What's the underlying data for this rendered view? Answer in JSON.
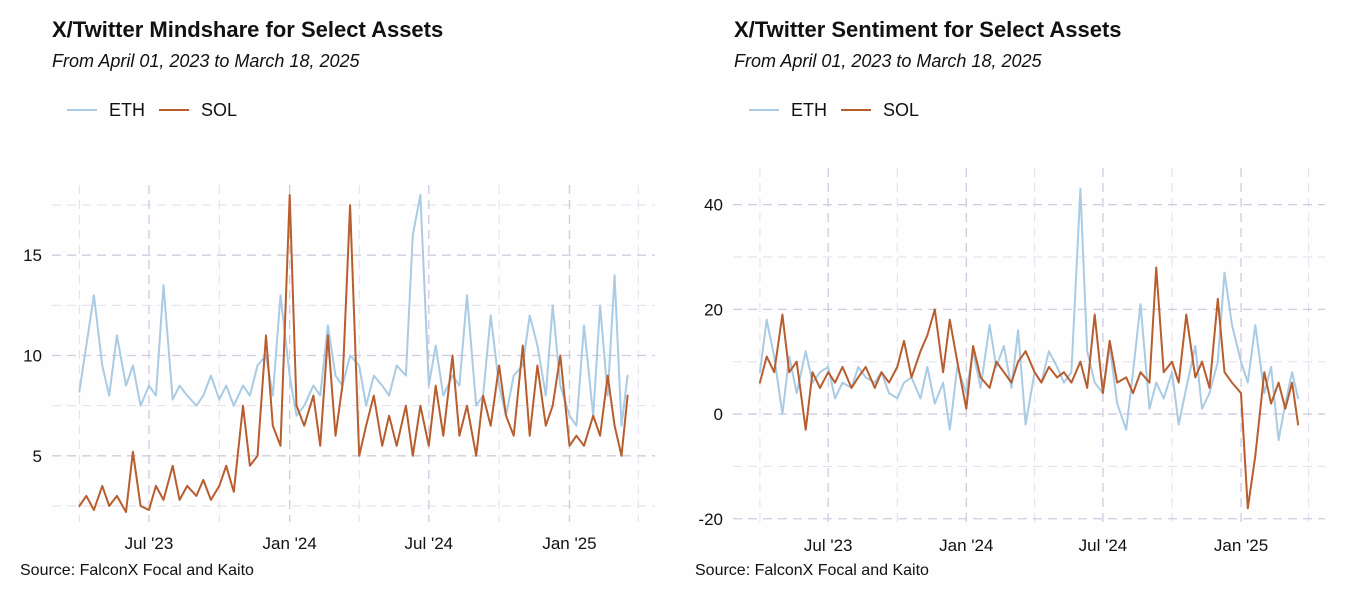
{
  "source_note": "Source: FalconX Focal and Kaito",
  "colors": {
    "eth": "#a9cbe3",
    "sol": "#b75d2e",
    "grid": "#cfcbe0"
  },
  "chart_data": [
    {
      "type": "line",
      "title": "X/Twitter Mindshare for Select Assets",
      "subtitle": "From April 01, 2023 to March 18, 2025",
      "xlabel": "",
      "ylabel": "",
      "x_range": [
        "2023-04-01",
        "2025-03-18"
      ],
      "ylim": [
        1.7,
        18.5
      ],
      "y_ticks": [
        5,
        10,
        15
      ],
      "y_tick_labels": [
        "5",
        "10",
        "15"
      ],
      "x_ticks": [
        "2023-07-01",
        "2024-01-01",
        "2024-07-01",
        "2025-01-01"
      ],
      "x_tick_labels": [
        "Jul '23",
        "Jan '24",
        "Jul '24",
        "Jan '25"
      ],
      "legend": [
        "ETH",
        "SOL"
      ],
      "legend_position": "top-left",
      "series": [
        {
          "name": "ETH",
          "color": "#a9cbe3",
          "x": [
            "2023-04-01",
            "2023-04-10",
            "2023-04-20",
            "2023-05-01",
            "2023-05-10",
            "2023-05-20",
            "2023-06-01",
            "2023-06-10",
            "2023-06-20",
            "2023-07-01",
            "2023-07-10",
            "2023-07-20",
            "2023-08-01",
            "2023-08-10",
            "2023-08-20",
            "2023-09-01",
            "2023-09-10",
            "2023-09-20",
            "2023-10-01",
            "2023-10-10",
            "2023-10-20",
            "2023-11-01",
            "2023-11-10",
            "2023-11-20",
            "2023-12-01",
            "2023-12-10",
            "2023-12-20",
            "2024-01-01",
            "2024-01-10",
            "2024-01-20",
            "2024-02-01",
            "2024-02-10",
            "2024-02-20",
            "2024-03-01",
            "2024-03-10",
            "2024-03-20",
            "2024-04-01",
            "2024-04-10",
            "2024-04-20",
            "2024-05-01",
            "2024-05-10",
            "2024-05-20",
            "2024-06-01",
            "2024-06-10",
            "2024-06-20",
            "2024-07-01",
            "2024-07-10",
            "2024-07-20",
            "2024-08-01",
            "2024-08-10",
            "2024-08-20",
            "2024-09-01",
            "2024-09-10",
            "2024-09-20",
            "2024-10-01",
            "2024-10-10",
            "2024-10-20",
            "2024-11-01",
            "2024-11-10",
            "2024-11-20",
            "2024-12-01",
            "2024-12-10",
            "2024-12-20",
            "2025-01-01",
            "2025-01-10",
            "2025-01-20",
            "2025-02-01",
            "2025-02-10",
            "2025-02-20",
            "2025-03-01",
            "2025-03-10",
            "2025-03-18"
          ],
          "values": [
            8.2,
            10.5,
            13.0,
            9.5,
            8.0,
            11.0,
            8.5,
            9.5,
            7.5,
            8.5,
            8.0,
            13.5,
            7.8,
            8.5,
            8.0,
            7.5,
            8.0,
            9.0,
            7.8,
            8.5,
            7.5,
            8.5,
            8.0,
            9.5,
            10.0,
            8.0,
            13.0,
            9.0,
            7.0,
            7.5,
            8.5,
            8.0,
            11.5,
            9.0,
            8.5,
            10.0,
            9.5,
            7.5,
            9.0,
            8.5,
            8.0,
            9.5,
            9.0,
            16.0,
            18.0,
            8.5,
            10.5,
            8.0,
            9.0,
            8.5,
            13.0,
            7.5,
            8.0,
            12.0,
            8.5,
            7.0,
            9.0,
            9.5,
            12.0,
            10.5,
            8.0,
            12.5,
            8.5,
            7.0,
            6.5,
            11.5,
            7.0,
            12.5,
            8.0,
            14.0,
            6.5,
            9.0
          ]
        },
        {
          "name": "SOL",
          "color": "#b75d2e",
          "x": [
            "2023-04-01",
            "2023-04-10",
            "2023-04-20",
            "2023-05-01",
            "2023-05-10",
            "2023-05-20",
            "2023-06-01",
            "2023-06-10",
            "2023-06-20",
            "2023-07-01",
            "2023-07-10",
            "2023-07-20",
            "2023-08-01",
            "2023-08-10",
            "2023-08-20",
            "2023-09-01",
            "2023-09-10",
            "2023-09-20",
            "2023-10-01",
            "2023-10-10",
            "2023-10-20",
            "2023-11-01",
            "2023-11-10",
            "2023-11-20",
            "2023-12-01",
            "2023-12-10",
            "2023-12-20",
            "2024-01-01",
            "2024-01-10",
            "2024-01-20",
            "2024-02-01",
            "2024-02-10",
            "2024-02-20",
            "2024-03-01",
            "2024-03-10",
            "2024-03-20",
            "2024-04-01",
            "2024-04-10",
            "2024-04-20",
            "2024-05-01",
            "2024-05-10",
            "2024-05-20",
            "2024-06-01",
            "2024-06-10",
            "2024-06-20",
            "2024-07-01",
            "2024-07-10",
            "2024-07-20",
            "2024-08-01",
            "2024-08-10",
            "2024-08-20",
            "2024-09-01",
            "2024-09-10",
            "2024-09-20",
            "2024-10-01",
            "2024-10-10",
            "2024-10-20",
            "2024-11-01",
            "2024-11-10",
            "2024-11-20",
            "2024-12-01",
            "2024-12-10",
            "2024-12-20",
            "2025-01-01",
            "2025-01-10",
            "2025-01-20",
            "2025-02-01",
            "2025-02-10",
            "2025-02-20",
            "2025-03-01",
            "2025-03-10",
            "2025-03-18"
          ],
          "values": [
            2.5,
            3.0,
            2.3,
            3.5,
            2.5,
            3.0,
            2.2,
            5.2,
            2.5,
            2.3,
            3.5,
            2.8,
            4.5,
            2.8,
            3.5,
            3.0,
            3.8,
            2.8,
            3.5,
            4.5,
            3.2,
            7.5,
            4.5,
            5.0,
            11.0,
            6.5,
            5.5,
            18.0,
            7.5,
            6.5,
            8.0,
            5.5,
            11.0,
            6.0,
            8.5,
            17.5,
            5.0,
            6.5,
            8.0,
            5.5,
            7.0,
            5.5,
            7.5,
            5.0,
            7.5,
            5.5,
            8.5,
            6.0,
            10.0,
            6.0,
            7.5,
            5.0,
            8.0,
            6.5,
            9.5,
            7.0,
            6.0,
            10.5,
            6.0,
            9.5,
            6.5,
            7.5,
            10.0,
            5.5,
            6.0,
            5.5,
            7.0,
            6.0,
            9.0,
            6.5,
            5.0,
            8.0
          ]
        }
      ]
    },
    {
      "type": "line",
      "title": "X/Twitter Sentiment for Select Assets",
      "subtitle": "From April 01, 2023 to March 18, 2025",
      "xlabel": "",
      "ylabel": "",
      "x_range": [
        "2023-04-01",
        "2025-03-18"
      ],
      "ylim": [
        -21,
        47
      ],
      "y_ticks": [
        -20,
        0,
        20,
        40
      ],
      "y_tick_labels": [
        "-20",
        "0",
        "20",
        "40"
      ],
      "x_ticks": [
        "2023-07-01",
        "2024-01-01",
        "2024-07-01",
        "2025-01-01"
      ],
      "x_tick_labels": [
        "Jul '23",
        "Jan '24",
        "Jul '24",
        "Jan '25"
      ],
      "legend": [
        "ETH",
        "SOL"
      ],
      "legend_position": "top-left",
      "series": [
        {
          "name": "ETH",
          "color": "#a9cbe3",
          "x": [
            "2023-04-01",
            "2023-04-10",
            "2023-04-20",
            "2023-05-01",
            "2023-05-10",
            "2023-05-20",
            "2023-06-01",
            "2023-06-10",
            "2023-06-20",
            "2023-07-01",
            "2023-07-10",
            "2023-07-20",
            "2023-08-01",
            "2023-08-10",
            "2023-08-20",
            "2023-09-01",
            "2023-09-10",
            "2023-09-20",
            "2023-10-01",
            "2023-10-10",
            "2023-10-20",
            "2023-11-01",
            "2023-11-10",
            "2023-11-20",
            "2023-12-01",
            "2023-12-10",
            "2023-12-20",
            "2024-01-01",
            "2024-01-10",
            "2024-01-20",
            "2024-02-01",
            "2024-02-10",
            "2024-02-20",
            "2024-03-01",
            "2024-03-10",
            "2024-03-20",
            "2024-04-01",
            "2024-04-10",
            "2024-04-20",
            "2024-05-01",
            "2024-05-10",
            "2024-05-20",
            "2024-06-01",
            "2024-06-10",
            "2024-06-20",
            "2024-07-01",
            "2024-07-10",
            "2024-07-20",
            "2024-08-01",
            "2024-08-10",
            "2024-08-20",
            "2024-09-01",
            "2024-09-10",
            "2024-09-20",
            "2024-10-01",
            "2024-10-10",
            "2024-10-20",
            "2024-11-01",
            "2024-11-10",
            "2024-11-20",
            "2024-12-01",
            "2024-12-10",
            "2024-12-20",
            "2025-01-01",
            "2025-01-10",
            "2025-01-20",
            "2025-02-01",
            "2025-02-10",
            "2025-02-20",
            "2025-03-01",
            "2025-03-10",
            "2025-03-18"
          ],
          "values": [
            8,
            18,
            11,
            0,
            11,
            4,
            12,
            6,
            8,
            9,
            3,
            6,
            5,
            9,
            7,
            6,
            8,
            4,
            3,
            6,
            7,
            3,
            9,
            2,
            6,
            -3,
            9,
            4,
            12,
            5,
            17,
            9,
            13,
            5,
            16,
            -2,
            8,
            6,
            12,
            9,
            6,
            8,
            43,
            12,
            6,
            4,
            13,
            2,
            -3,
            8,
            21,
            1,
            6,
            3,
            8,
            -2,
            5,
            13,
            1,
            4,
            10,
            27,
            17,
            10,
            6,
            17,
            4,
            9,
            -5,
            2,
            8,
            3
          ]
        },
        {
          "name": "SOL",
          "color": "#b75d2e",
          "x": [
            "2023-04-01",
            "2023-04-10",
            "2023-04-20",
            "2023-05-01",
            "2023-05-10",
            "2023-05-20",
            "2023-06-01",
            "2023-06-10",
            "2023-06-20",
            "2023-07-01",
            "2023-07-10",
            "2023-07-20",
            "2023-08-01",
            "2023-08-10",
            "2023-08-20",
            "2023-09-01",
            "2023-09-10",
            "2023-09-20",
            "2023-10-01",
            "2023-10-10",
            "2023-10-20",
            "2023-11-01",
            "2023-11-10",
            "2023-11-20",
            "2023-12-01",
            "2023-12-10",
            "2023-12-20",
            "2024-01-01",
            "2024-01-10",
            "2024-01-20",
            "2024-02-01",
            "2024-02-10",
            "2024-02-20",
            "2024-03-01",
            "2024-03-10",
            "2024-03-20",
            "2024-04-01",
            "2024-04-10",
            "2024-04-20",
            "2024-05-01",
            "2024-05-10",
            "2024-05-20",
            "2024-06-01",
            "2024-06-10",
            "2024-06-20",
            "2024-07-01",
            "2024-07-10",
            "2024-07-20",
            "2024-08-01",
            "2024-08-10",
            "2024-08-20",
            "2024-09-01",
            "2024-09-10",
            "2024-09-20",
            "2024-10-01",
            "2024-10-10",
            "2024-10-20",
            "2024-11-01",
            "2024-11-10",
            "2024-11-20",
            "2024-12-01",
            "2024-12-10",
            "2024-12-20",
            "2025-01-01",
            "2025-01-10",
            "2025-01-20",
            "2025-02-01",
            "2025-02-10",
            "2025-02-20",
            "2025-03-01",
            "2025-03-10",
            "2025-03-18"
          ],
          "values": [
            6,
            11,
            8,
            19,
            8,
            10,
            -3,
            8,
            5,
            8,
            6,
            9,
            5,
            7,
            9,
            5,
            8,
            6,
            9,
            14,
            7,
            12,
            15,
            20,
            8,
            18,
            10,
            1,
            13,
            7,
            5,
            10,
            8,
            6,
            10,
            12,
            8,
            6,
            9,
            7,
            8,
            6,
            10,
            5,
            19,
            4,
            14,
            6,
            7,
            4,
            8,
            6,
            28,
            8,
            10,
            6,
            19,
            7,
            10,
            5,
            22,
            8,
            6,
            4,
            -18,
            -8,
            8,
            2,
            6,
            1,
            6,
            -2
          ]
        }
      ]
    }
  ]
}
